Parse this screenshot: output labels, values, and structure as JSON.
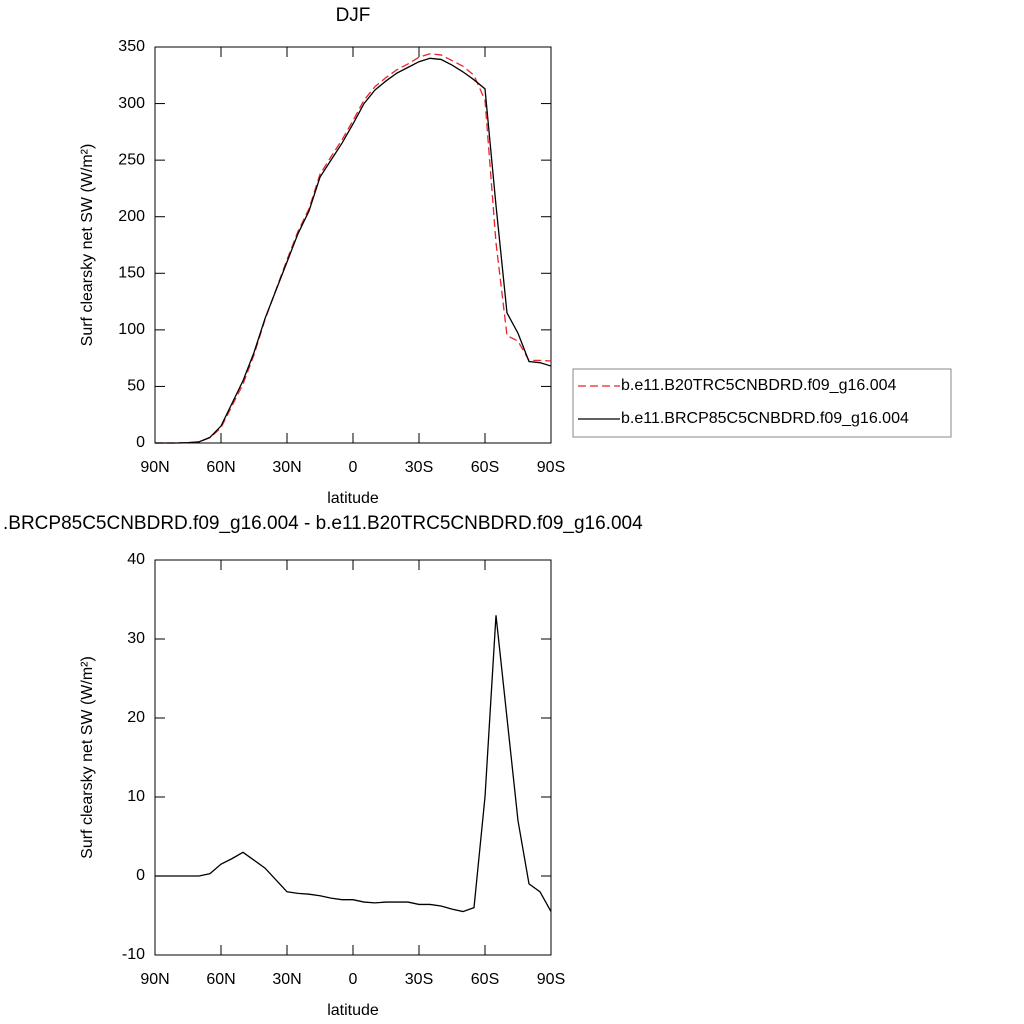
{
  "chart_data": [
    {
      "type": "line",
      "title": "DJF",
      "xlabel": "latitude",
      "ylabel": "Surf clearsky net SW (W/m²)",
      "x": [
        90,
        85,
        80,
        75,
        70,
        65,
        60,
        55,
        50,
        45,
        40,
        35,
        30,
        25,
        20,
        15,
        10,
        5,
        0,
        -5,
        -10,
        -15,
        -20,
        -25,
        -30,
        -35,
        -40,
        -45,
        -50,
        -55,
        -60,
        -65,
        -70,
        -75,
        -80,
        -85,
        -90
      ],
      "series": [
        {
          "name": "b.e11.B20TRC5CNBDRD.f09_g16.004",
          "color": "#e8242b",
          "dash": true,
          "values": [
            0,
            0,
            0,
            0.3,
            1,
            4.7,
            13.5,
            32.8,
            52,
            78,
            109,
            135.5,
            162,
            187,
            207,
            237.5,
            253,
            268,
            285,
            303,
            315,
            323,
            330,
            335,
            341,
            344,
            343,
            338,
            333,
            325,
            303,
            177,
            95,
            90,
            73,
            73,
            72.5
          ]
        },
        {
          "name": "b.e11.BRCP85C5CNBDRD.f09_g16.004",
          "color": "#000000",
          "dash": false,
          "values": [
            0,
            0,
            0,
            0.3,
            1,
            5,
            15,
            35,
            55,
            80,
            110,
            135,
            160,
            185,
            205,
            235,
            250,
            265,
            282,
            300,
            312,
            320,
            327,
            332,
            337,
            340,
            339,
            334,
            328,
            321,
            313,
            210,
            115,
            97,
            72,
            71,
            68
          ]
        }
      ],
      "xlim": [
        90,
        -90
      ],
      "xticks": [
        {
          "value": 90,
          "label": "90N"
        },
        {
          "value": 60,
          "label": "60N"
        },
        {
          "value": 30,
          "label": "30N"
        },
        0,
        {
          "value": -30,
          "label": "30S"
        },
        {
          "value": -60,
          "label": "60S"
        },
        {
          "value": -90,
          "label": "90S"
        }
      ],
      "ylim": [
        0,
        350
      ],
      "yticks": [
        0,
        50,
        100,
        150,
        200,
        250,
        300,
        350
      ],
      "legend": "right"
    },
    {
      "type": "line",
      "title": ".BRCP85C5CNBDRD.f09_g16.004 - b.e11.B20TRC5CNBDRD.f09_g16.004",
      "xlabel": "latitude",
      "ylabel": "Surf clearsky net SW (W/m²)",
      "x": [
        90,
        85,
        80,
        75,
        70,
        65,
        60,
        55,
        50,
        45,
        40,
        35,
        30,
        25,
        20,
        15,
        10,
        5,
        0,
        -5,
        -10,
        -15,
        -20,
        -25,
        -30,
        -35,
        -40,
        -45,
        -50,
        -55,
        -60,
        -65,
        -70,
        -75,
        -80,
        -85,
        -90
      ],
      "series": [
        {
          "color": "#000000",
          "dash": false,
          "values": [
            0,
            0,
            0,
            0,
            0,
            0.3,
            1.5,
            2.2,
            3,
            2,
            1,
            -0.5,
            -2,
            -2.2,
            -2.3,
            -2.5,
            -2.8,
            -3,
            -3,
            -3.3,
            -3.4,
            -3.3,
            -3.3,
            -3.3,
            -3.6,
            -3.6,
            -3.8,
            -4.2,
            -4.5,
            -4,
            10,
            33,
            20,
            7,
            -1,
            -2,
            -4.5
          ]
        }
      ],
      "xlim": [
        90,
        -90
      ],
      "xticks": [
        {
          "value": 90,
          "label": "90N"
        },
        {
          "value": 60,
          "label": "60N"
        },
        {
          "value": 30,
          "label": "30N"
        },
        0,
        {
          "value": -30,
          "label": "30S"
        },
        {
          "value": -60,
          "label": "60S"
        },
        {
          "value": -90,
          "label": "90S"
        }
      ],
      "ylim": [
        -10,
        40
      ],
      "yticks": [
        -10,
        0,
        10,
        20,
        30,
        40
      ]
    }
  ]
}
